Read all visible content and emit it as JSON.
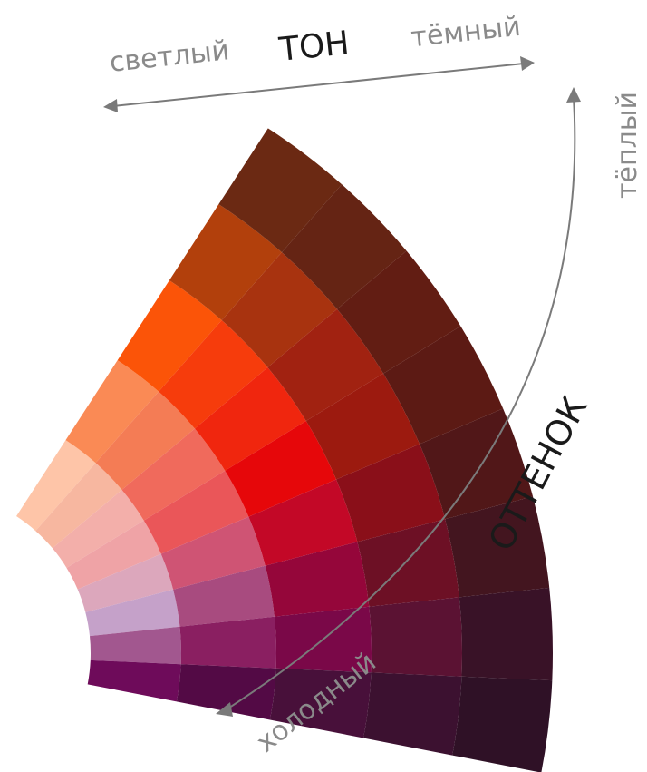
{
  "labels": {
    "tone_title": "ТОН",
    "light": "светлый",
    "dark": "тёмный",
    "warm": "тёплый",
    "cold": "холодный",
    "hue_title": "ОТТЕНОК"
  },
  "wheel": {
    "rings": 5,
    "rows": 8,
    "colors": [
      [
        "#FEC5A8",
        "#FA8A55",
        "#FB5408",
        "#B2400C",
        "#6B2913"
      ],
      [
        "#F7B7A0",
        "#F47C55",
        "#F63C0C",
        "#A8330F",
        "#652414"
      ],
      [
        "#F3AFAA",
        "#F06A5C",
        "#F0260E",
        "#A12211",
        "#621D13"
      ],
      [
        "#EFA3A6",
        "#EA5659",
        "#E6070A",
        "#9C1A0F",
        "#5C1A14"
      ],
      [
        "#DCA7BC",
        "#CF5474",
        "#C30827",
        "#8A0F19",
        "#511718"
      ],
      [
        "#C5A1C9",
        "#A84B7F",
        "#95063A",
        "#6D1025",
        "#43151F"
      ],
      [
        "#A2578F",
        "#8A1F61",
        "#7A0848",
        "#5B1233",
        "#391227"
      ],
      [
        "#6E0B5A",
        "#530A45",
        "#48103A",
        "#3C1130",
        "#2F1126"
      ]
    ]
  }
}
